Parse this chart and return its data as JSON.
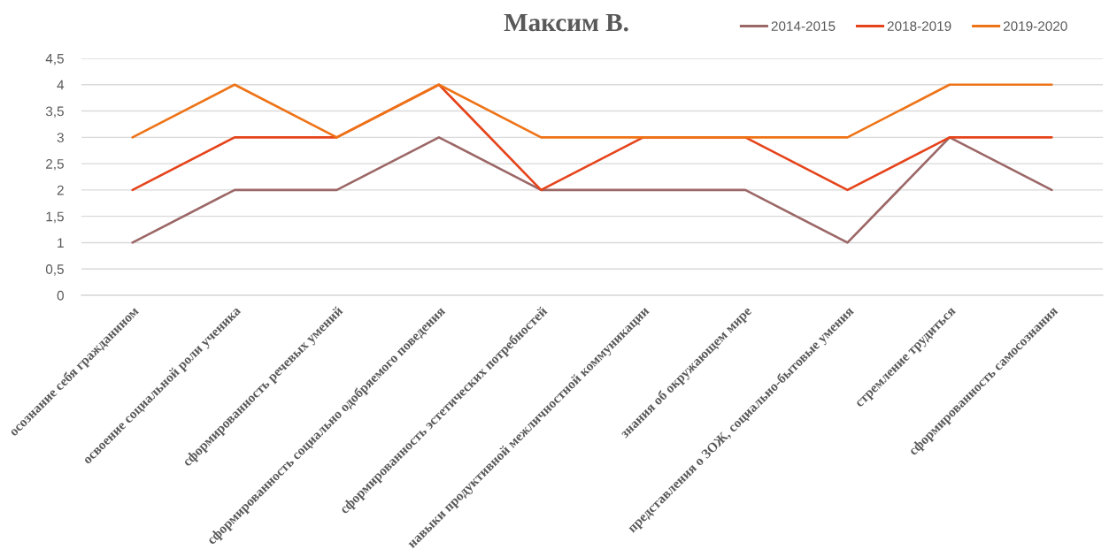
{
  "chart_data": {
    "type": "line",
    "title": "Максим В.",
    "categories": [
      "осознание себя гражданином",
      "освоение социальной роли ученика",
      "сформированность речевых умений",
      "сформированность социально одобряемого поведения",
      "сформированность эстетических потребностей",
      "навыки продуктивной межличностной коммуникации",
      "знания об окружающем мире",
      "представления о ЗОЖ, социально-бытовые умения",
      "стремление трудиться",
      "сформированность самосознания"
    ],
    "series": [
      {
        "name": "2014-2015",
        "color": "#9c6767",
        "values": [
          1,
          2,
          2,
          3,
          2,
          2,
          2,
          1,
          3,
          2
        ]
      },
      {
        "name": "2018-2019",
        "color": "#e5441b",
        "values": [
          2,
          3,
          3,
          4,
          2,
          3,
          3,
          2,
          3,
          3
        ]
      },
      {
        "name": "2019-2020",
        "color": "#ee7316",
        "values": [
          3,
          4,
          3,
          4,
          3,
          3,
          3,
          3,
          4,
          4
        ]
      }
    ],
    "ylim": [
      0,
      4.5
    ],
    "yticks": [
      0,
      {
        "value": 0.5,
        "label": "0,5"
      },
      1,
      {
        "value": 1.5,
        "label": "1,5"
      },
      2,
      {
        "value": 2.5,
        "label": "2,5"
      },
      3,
      {
        "value": 3.5,
        "label": "3,5"
      },
      4,
      {
        "value": 4.5,
        "label": "4,5"
      }
    ],
    "grid": "y",
    "legend": "top right",
    "marker": "none",
    "line_style": "solid"
  }
}
